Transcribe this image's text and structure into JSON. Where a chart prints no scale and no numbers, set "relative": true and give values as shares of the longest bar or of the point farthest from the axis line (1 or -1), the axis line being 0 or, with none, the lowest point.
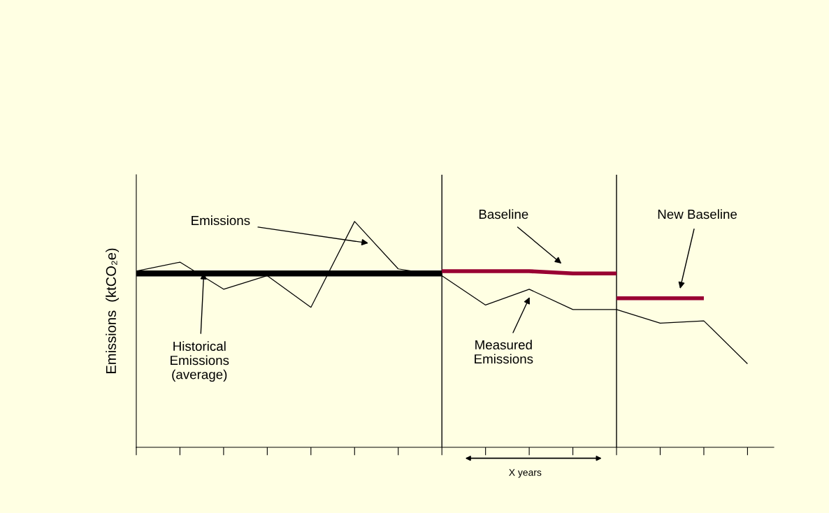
{
  "chart_data": {
    "type": "line",
    "relative": true,
    "ylabel": "Emissions  (ktCO₂e)",
    "categories": [
      null,
      null,
      null,
      null,
      null,
      null,
      null,
      null,
      null,
      null,
      null,
      null,
      null,
      null,
      null
    ],
    "grid": false,
    "marker": "none",
    "line_style": "solid",
    "series": [
      {
        "color": "#000000",
        "values": [
          0.78,
          0.82,
          0.7,
          0.76,
          0.62,
          1.0,
          0.79,
          0.76,
          0.63,
          0.7,
          0.61,
          0.61,
          0.55,
          0.56,
          0.37
        ]
      },
      {
        "color": "#000000",
        "values": [
          0.77,
          0.77,
          0.77,
          0.77,
          0.77,
          0.77,
          0.77,
          0.77,
          null,
          null,
          null,
          null,
          null,
          null,
          null
        ]
      },
      {
        "color": "#990033",
        "values": [
          null,
          null,
          null,
          null,
          null,
          null,
          null,
          0.78,
          0.78,
          0.78,
          0.77,
          0.77,
          null,
          null,
          null
        ]
      },
      {
        "color": "#990033",
        "values": [
          null,
          null,
          null,
          null,
          null,
          null,
          null,
          null,
          null,
          null,
          null,
          0.66,
          0.66,
          0.66,
          null
        ]
      }
    ],
    "annotations": [
      "Emissions",
      "Historical\nEmissions\n(average)",
      "Baseline",
      "New Baseline",
      "Measured\nEmissions",
      "X years"
    ]
  }
}
